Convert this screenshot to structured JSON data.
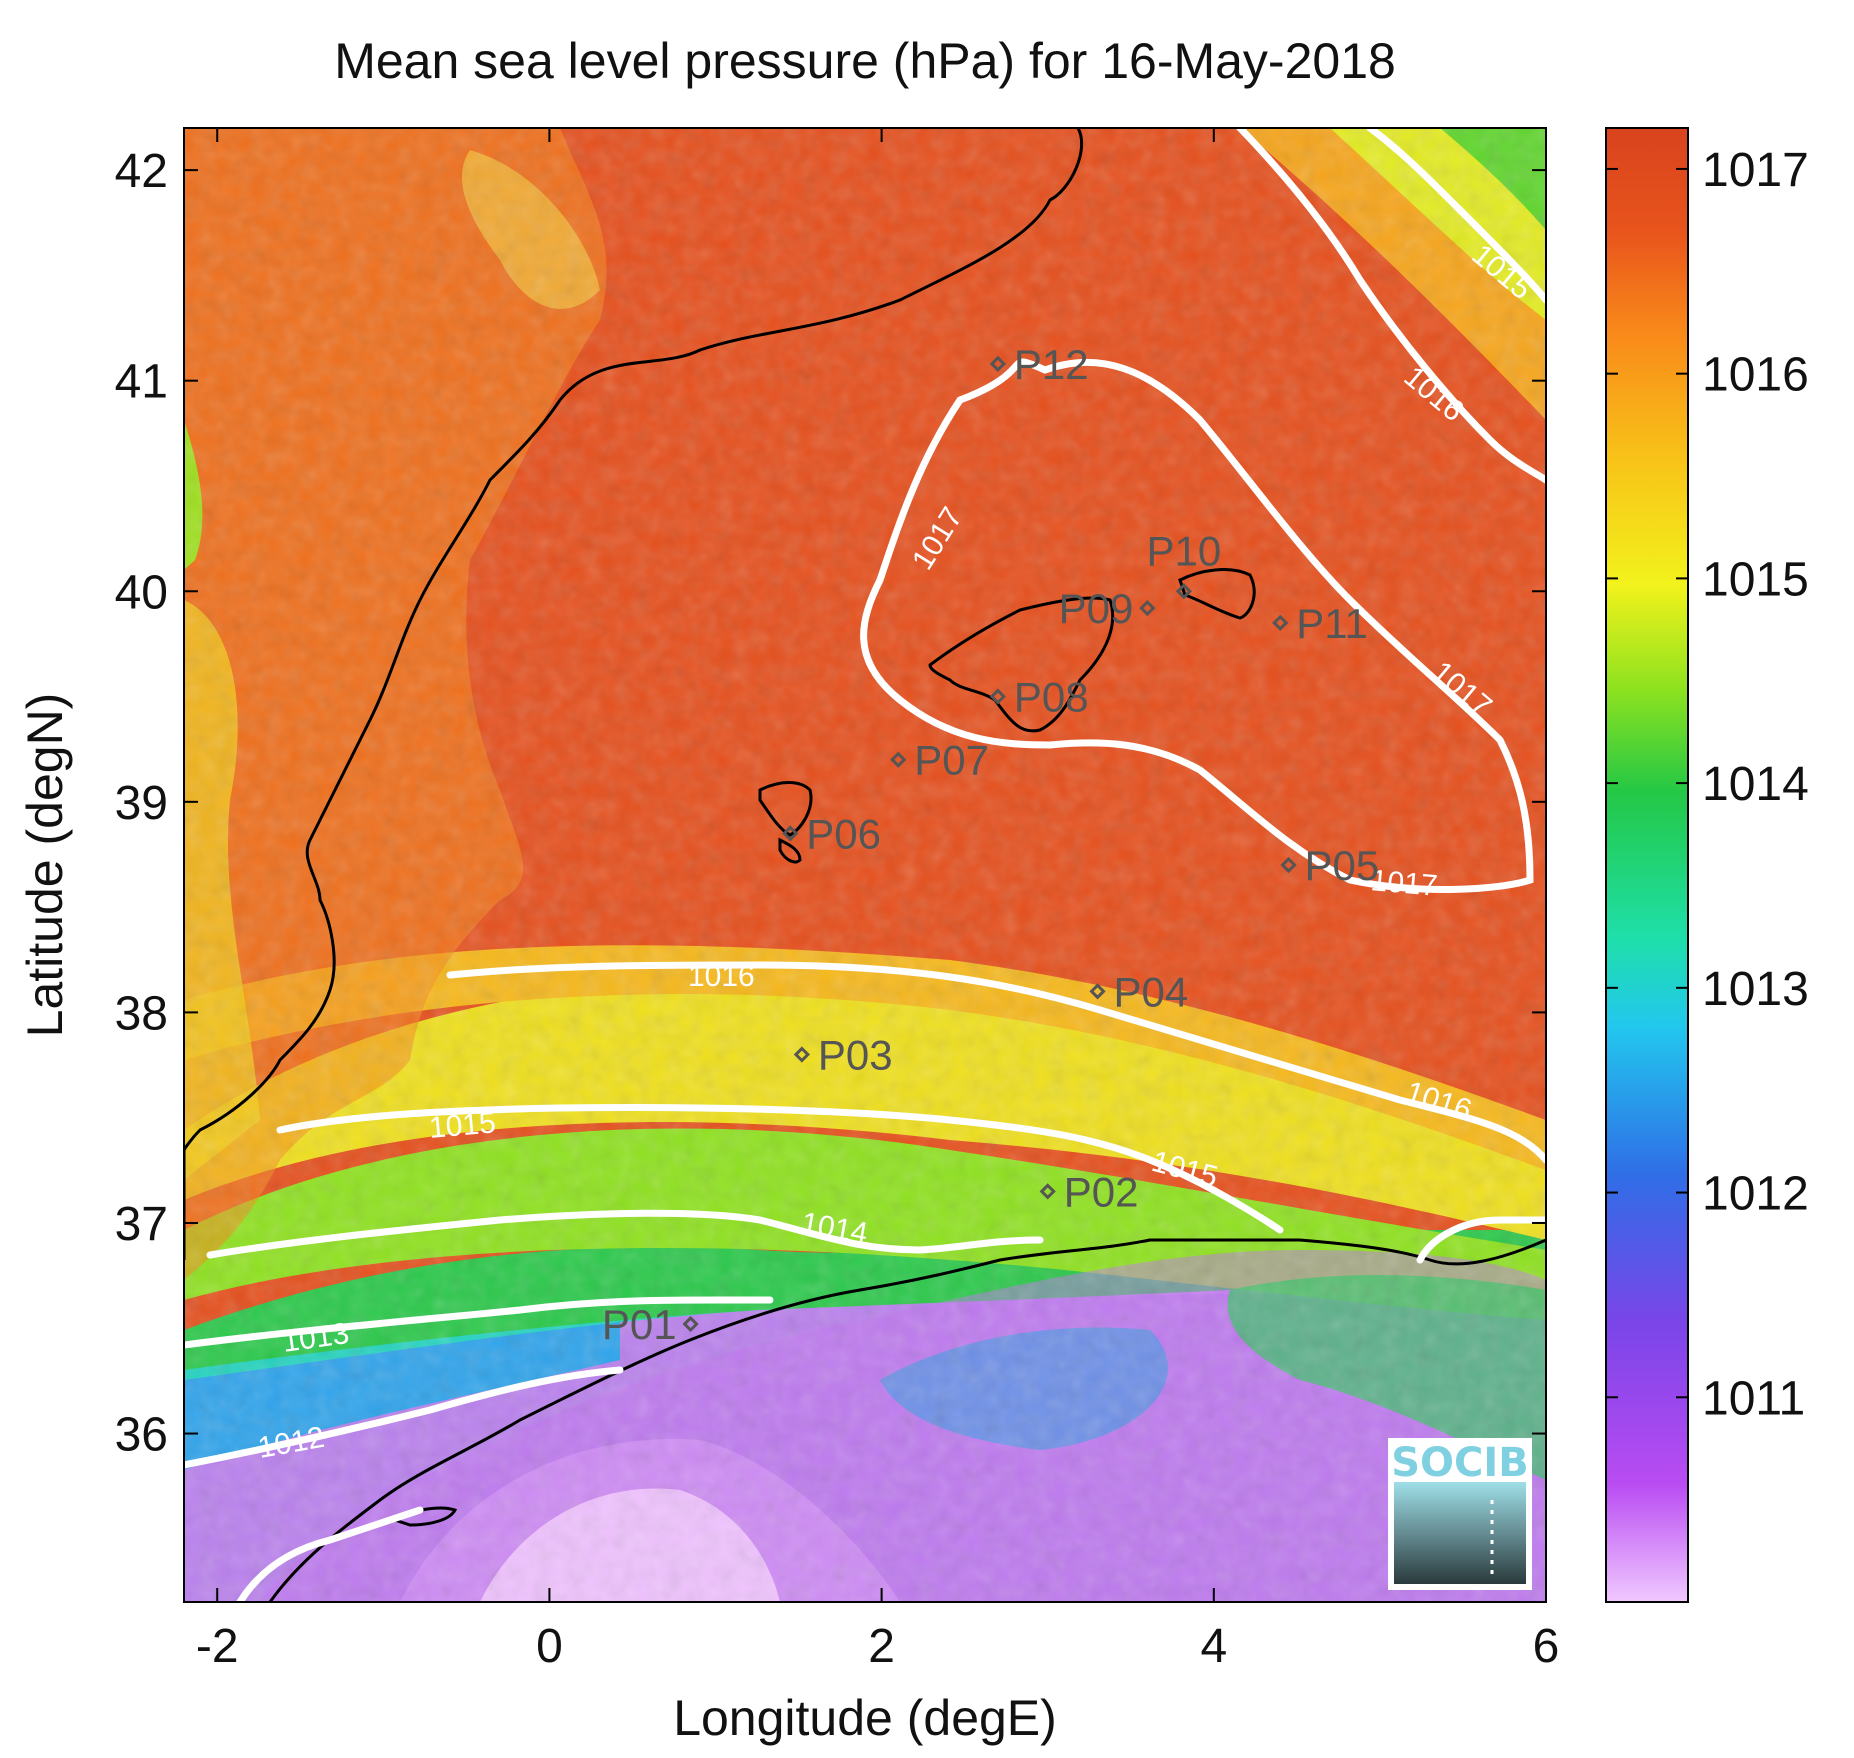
{
  "title": "Mean sea level pressure (hPa) for 16-May-2018",
  "xlabel": "Longitude (degE)",
  "ylabel": "Latitude (degN)",
  "logo": "SOCIB",
  "colors": {
    "contour": "#ffffff",
    "coast": "#000000",
    "station": "#555555"
  },
  "chart_data": {
    "type": "heatmap",
    "variable": "Mean sea level pressure",
    "units": "hPa",
    "date": "16-May-2018",
    "xlim": [
      -2.2,
      6.0
    ],
    "ylim": [
      35.2,
      42.2
    ],
    "xticks": [
      -2,
      0,
      2,
      4,
      6
    ],
    "yticks": [
      36,
      37,
      38,
      39,
      40,
      41,
      42
    ],
    "colorbar": {
      "range": [
        1010.0,
        1017.2
      ],
      "ticks": [
        1011,
        1012,
        1013,
        1014,
        1015,
        1016,
        1017
      ],
      "colormap": [
        "#f0c8ff",
        "#b94cf2",
        "#7a45e8",
        "#2f6ee6",
        "#22c7ee",
        "#1fdfaa",
        "#24c845",
        "#8fe21f",
        "#f2f21c",
        "#f8c018",
        "#f98a1a",
        "#e8541c",
        "#d9431e"
      ]
    },
    "contour_levels": [
      1012,
      1013,
      1014,
      1015,
      1016,
      1017
    ],
    "stations": [
      {
        "name": "P01",
        "lon": 0.85,
        "lat": 36.52
      },
      {
        "name": "P02",
        "lon": 3.0,
        "lat": 37.15
      },
      {
        "name": "P03",
        "lon": 1.52,
        "lat": 37.8
      },
      {
        "name": "P04",
        "lon": 3.3,
        "lat": 38.1
      },
      {
        "name": "P05",
        "lon": 4.45,
        "lat": 38.7
      },
      {
        "name": "P06",
        "lon": 1.45,
        "lat": 38.85
      },
      {
        "name": "P07",
        "lon": 2.1,
        "lat": 39.2
      },
      {
        "name": "P08",
        "lon": 2.7,
        "lat": 39.5
      },
      {
        "name": "P09",
        "lon": 3.6,
        "lat": 39.92
      },
      {
        "name": "P10",
        "lon": 3.82,
        "lat": 40.0
      },
      {
        "name": "P11",
        "lon": 4.4,
        "lat": 39.85
      },
      {
        "name": "P12",
        "lon": 2.7,
        "lat": 41.08
      }
    ]
  }
}
